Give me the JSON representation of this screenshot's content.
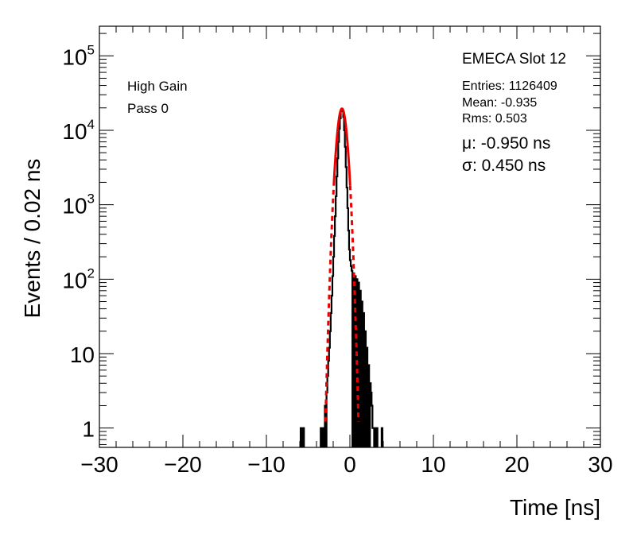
{
  "chart_data": {
    "type": "histogram",
    "xlabel": "Time [ns]",
    "ylabel": "Events / 0.02 ns",
    "xlim": [
      -30,
      30
    ],
    "ylim": [
      0.55,
      250000
    ],
    "yscale": "log",
    "x_ticks": [
      -30,
      -20,
      -10,
      0,
      10,
      20,
      30
    ],
    "x_tick_labels": [
      "−30",
      "−20",
      "−10",
      "0",
      "10",
      "20",
      "30"
    ],
    "y_ticks": [
      {
        "value": 1,
        "base": "1",
        "exp": ""
      },
      {
        "value": 10,
        "base": "10",
        "exp": ""
      },
      {
        "value": 100,
        "base": "10",
        "exp": "2"
      },
      {
        "value": 1000,
        "base": "10",
        "exp": "3"
      },
      {
        "value": 10000,
        "base": "10",
        "exp": "4"
      },
      {
        "value": 100000,
        "base": "10",
        "exp": "5"
      }
    ],
    "histogram": {
      "x": [
        -5.9,
        -5.6,
        -3.5,
        -3.4,
        -3.2,
        -3.0,
        -2.8,
        -2.7,
        -2.6,
        -2.5,
        -2.4,
        -2.3,
        -2.2,
        -2.1,
        -2.0,
        -1.9,
        -1.8,
        -1.7,
        -1.6,
        -1.5,
        -1.4,
        -1.3,
        -1.2,
        -1.1,
        -1.0,
        -0.9,
        -0.8,
        -0.7,
        -0.6,
        -0.5,
        -0.4,
        -0.3,
        -0.2,
        -0.1,
        0.0,
        0.1,
        0.2,
        0.4,
        0.6,
        0.8,
        1.0,
        1.2,
        1.4,
        1.6,
        1.8,
        2.0,
        2.2,
        2.4,
        2.5,
        2.6,
        2.7,
        2.8,
        3.0,
        3.2,
        3.8
      ],
      "y": [
        1,
        1,
        1,
        1,
        1,
        2,
        3,
        5,
        8,
        12,
        20,
        35,
        60,
        110,
        200,
        380,
        700,
        1300,
        2400,
        4200,
        7000,
        10500,
        14500,
        18000,
        19500,
        18500,
        15000,
        10000,
        6000,
        3200,
        1700,
        900,
        450,
        250,
        180,
        150,
        130,
        120,
        110,
        100,
        90,
        70,
        50,
        35,
        20,
        12,
        7,
        4,
        3,
        2,
        1,
        1,
        1,
        1,
        1
      ]
    },
    "fit": {
      "label_title": "EMECA Slot 12",
      "mu": -0.95,
      "sigma": 0.45,
      "amplitude": 19500,
      "color": "#ee0000"
    },
    "annotations": {
      "gain": "High Gain",
      "pass": "Pass 0",
      "entries": "Entries: 1126409",
      "mean": "Mean: -0.935",
      "rms": "Rms: 0.503",
      "mu_text": "μ: -0.950 ns",
      "sigma_text": "σ: 0.450 ns"
    }
  }
}
